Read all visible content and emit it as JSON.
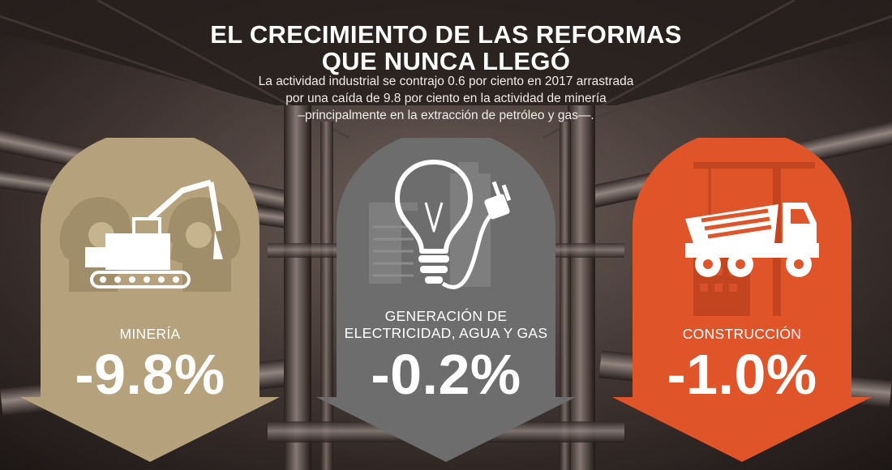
{
  "header": {
    "title_line1": "EL CRECIMIENTO DE LAS REFORMAS",
    "title_line2": "QUE NUNCA LLEGÓ",
    "subtitle_line1": "La actividad industrial se contrajo 0.6 por ciento en 2017 arrastrada",
    "subtitle_line2": "por una caída de 9.8 por ciento en la actividad de minería",
    "subtitle_line3": "–principalmente en la extracción de petróleo y gas—."
  },
  "sectors": [
    {
      "label_line1": "MINERÍA",
      "label_line2": "",
      "value": "-9.8%",
      "color": "#b5a17c",
      "icon": "mining-excavator-icon"
    },
    {
      "label_line1": "GENERACIÓN DE",
      "label_line2": "ELECTRICIDAD, AGUA Y GAS",
      "value": "-0.2%",
      "color": "#6d6d6d",
      "icon": "lightbulb-plug-icon"
    },
    {
      "label_line1": "CONSTRUCCIÓN",
      "label_line2": "",
      "value": "-1.0%",
      "color": "#e0542a",
      "icon": "dump-truck-crane-icon"
    }
  ]
}
